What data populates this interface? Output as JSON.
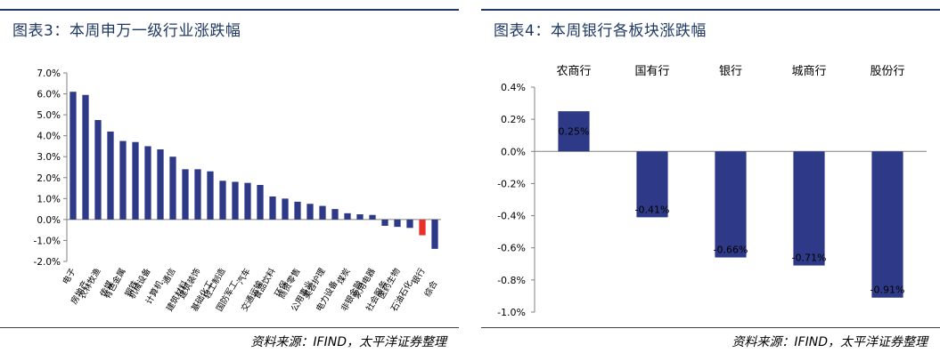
{
  "left": {
    "title": "图表3：本周申万一级行业涨跌幅",
    "source": "资料来源：IFIND，太平洋证券整理",
    "chart_data": {
      "type": "bar",
      "title": "本周申万一级行业涨跌幅",
      "categories": [
        "电子",
        "房地产",
        "农林牧渔",
        "传媒",
        "有色金属",
        "钢铁",
        "机械设备",
        "计算机",
        "通信",
        "建筑材料",
        "建筑装饰",
        "基础化工",
        "轻工制造",
        "国防军工",
        "汽车",
        "交通运输",
        "食品饮料",
        "环保",
        "商贸零售",
        "公用事业",
        "美容护理",
        "电力设备",
        "煤炭",
        "非银金融",
        "家用电器",
        "社会服务",
        "医药生物",
        "石油石化",
        "银行",
        "综合"
      ],
      "values": [
        6.1,
        5.95,
        4.75,
        4.2,
        3.75,
        3.7,
        3.5,
        3.35,
        3.0,
        2.4,
        2.4,
        2.3,
        1.85,
        1.8,
        1.75,
        1.65,
        1.1,
        1.0,
        0.85,
        0.75,
        0.65,
        0.5,
        0.3,
        0.25,
        0.22,
        -0.3,
        -0.35,
        -0.4,
        -0.75,
        -1.4
      ],
      "highlight_index": 28,
      "ylim": [
        -2.0,
        7.0
      ],
      "yticks": [
        "-2.0%",
        "-1.0%",
        "0.0%",
        "1.0%",
        "2.0%",
        "3.0%",
        "4.0%",
        "5.0%",
        "6.0%",
        "7.0%"
      ],
      "colors": {
        "bar": "#2e3a87",
        "highlight": "#e8312a",
        "axis": "#808080"
      }
    }
  },
  "right": {
    "title": "图表4：本周银行各板块涨跌幅",
    "source": "资料来源：IFIND，太平洋证券整理",
    "chart_data": {
      "type": "bar",
      "title": "本周银行各板块涨跌幅",
      "categories": [
        "农商行",
        "国有行",
        "银行",
        "城商行",
        "股份行"
      ],
      "values": [
        0.25,
        -0.41,
        -0.66,
        -0.71,
        -0.91
      ],
      "data_labels": [
        "0.25%",
        "-0.41%",
        "-0.66%",
        "-0.71%",
        "-0.91%"
      ],
      "ylim": [
        -1.0,
        0.4
      ],
      "yticks": [
        "-1.0%",
        "-0.8%",
        "-0.6%",
        "-0.4%",
        "-0.2%",
        "0.0%",
        "0.2%",
        "0.4%"
      ],
      "colors": {
        "bar": "#2e3a87",
        "axis": "#808080"
      }
    }
  }
}
